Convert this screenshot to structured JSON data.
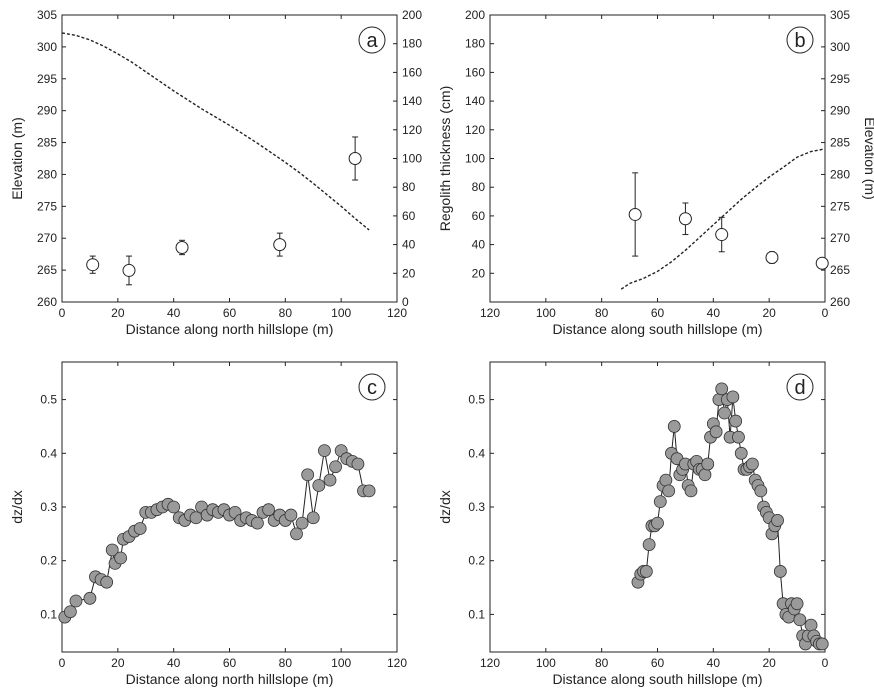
{
  "chart_data": [
    {
      "panel": "a",
      "type": "scatter",
      "panel_label": "a",
      "xlabel": "Distance along north hillslope (m)",
      "ylabel_left": "Elevation (m)",
      "ylabel_right": "",
      "xlim": [
        0,
        120
      ],
      "xticks": [
        0,
        20,
        40,
        60,
        80,
        100,
        120
      ],
      "xreversed": false,
      "ylim_left": [
        260,
        305
      ],
      "yticks_left": [
        260,
        265,
        270,
        275,
        280,
        285,
        290,
        295,
        300,
        305
      ],
      "ylim_right": [
        0,
        200
      ],
      "yticks_right": [
        0,
        20,
        40,
        60,
        80,
        100,
        120,
        140,
        160,
        180,
        200
      ],
      "series": [
        {
          "kind": "line-dashed",
          "axis": "left",
          "x": [
            0,
            5,
            10,
            15,
            20,
            25,
            30,
            35,
            40,
            45,
            50,
            55,
            60,
            65,
            70,
            75,
            80,
            85,
            90,
            95,
            100,
            105,
            110
          ],
          "y": [
            302.2,
            301.8,
            301.1,
            300.1,
            298.9,
            297.6,
            296.1,
            294.6,
            293.1,
            291.7,
            290.3,
            289.0,
            287.7,
            286.3,
            284.9,
            283.4,
            281.9,
            280.3,
            278.6,
            276.8,
            275.0,
            273.1,
            271.3
          ]
        },
        {
          "kind": "points-errorbars",
          "axis": "right",
          "x": [
            11,
            24,
            43,
            78,
            105
          ],
          "y": [
            26,
            22,
            38,
            40,
            100
          ],
          "err": [
            6,
            10,
            5,
            8,
            15
          ]
        }
      ]
    },
    {
      "panel": "b",
      "type": "scatter",
      "panel_label": "b",
      "xlabel": "Distance along south hillslope (m)",
      "ylabel_left": "Regolith thickness (cm)",
      "ylabel_right": "Elevation (m)",
      "xlim": [
        120,
        0
      ],
      "xticks": [
        120,
        100,
        80,
        60,
        40,
        20,
        0
      ],
      "xreversed": true,
      "ylim_left": [
        0,
        200
      ],
      "yticks_left": [
        20,
        40,
        60,
        80,
        100,
        120,
        140,
        160,
        180,
        200
      ],
      "ylim_right": [
        260,
        305
      ],
      "yticks_right": [
        260,
        265,
        270,
        275,
        280,
        285,
        290,
        295,
        300,
        305
      ],
      "series": [
        {
          "kind": "line-dashed",
          "axis": "right",
          "x": [
            73,
            70,
            65,
            60,
            55,
            50,
            45,
            40,
            35,
            30,
            25,
            20,
            15,
            10,
            5,
            0
          ],
          "y": [
            262.0,
            262.9,
            263.7,
            264.8,
            266.3,
            268.1,
            270.1,
            272.1,
            274.1,
            276.1,
            277.9,
            279.6,
            281.1,
            282.7,
            283.6,
            284.0
          ]
        },
        {
          "kind": "points-errorbars",
          "axis": "left",
          "x": [
            68,
            50,
            37,
            19,
            1
          ],
          "y": [
            61,
            58,
            47,
            31,
            27
          ],
          "err": [
            29,
            11,
            12,
            4,
            2
          ]
        }
      ]
    },
    {
      "panel": "c",
      "type": "scatter",
      "panel_label": "c",
      "xlabel": "Distance along north hillslope (m)",
      "ylabel_left": "dz/dx",
      "xlim": [
        0,
        120
      ],
      "xticks": [
        0,
        20,
        40,
        60,
        80,
        100,
        120
      ],
      "xreversed": false,
      "ylim_left": [
        0.03,
        0.57
      ],
      "yticks_left": [
        0.1,
        0.2,
        0.3,
        0.4,
        0.5
      ],
      "series": [
        {
          "kind": "points-line",
          "x": [
            1,
            3,
            5,
            10,
            12,
            14,
            16,
            18,
            19,
            21,
            22,
            24,
            26,
            28,
            30,
            32,
            34,
            36,
            38,
            40,
            42,
            44,
            46,
            48,
            50,
            52,
            54,
            56,
            58,
            60,
            62,
            64,
            66,
            68,
            70,
            72,
            74,
            76,
            78,
            80,
            82,
            84,
            86,
            88,
            90,
            92,
            94,
            96,
            98,
            100,
            102,
            104,
            106,
            108,
            110
          ],
          "y": [
            0.095,
            0.105,
            0.125,
            0.13,
            0.17,
            0.165,
            0.16,
            0.22,
            0.195,
            0.205,
            0.24,
            0.245,
            0.255,
            0.26,
            0.29,
            0.29,
            0.295,
            0.3,
            0.305,
            0.3,
            0.28,
            0.275,
            0.285,
            0.28,
            0.3,
            0.285,
            0.295,
            0.29,
            0.295,
            0.285,
            0.29,
            0.275,
            0.28,
            0.275,
            0.27,
            0.29,
            0.295,
            0.275,
            0.285,
            0.275,
            0.285,
            0.25,
            0.27,
            0.36,
            0.28,
            0.34,
            0.405,
            0.35,
            0.375,
            0.405,
            0.39,
            0.385,
            0.38,
            0.33,
            0.33
          ]
        }
      ]
    },
    {
      "panel": "d",
      "type": "scatter",
      "panel_label": "d",
      "xlabel": "Distance along south hillslope (m)",
      "ylabel_left": "dz/dx",
      "xlim": [
        120,
        0
      ],
      "xticks": [
        120,
        100,
        80,
        60,
        40,
        20,
        0
      ],
      "xreversed": true,
      "ylim_left": [
        0.03,
        0.57
      ],
      "yticks_left": [
        0.1,
        0.2,
        0.3,
        0.4,
        0.5
      ],
      "series": [
        {
          "kind": "points-line",
          "x": [
            67,
            66,
            65,
            64,
            63,
            62,
            61,
            60,
            59,
            58,
            57,
            56,
            55,
            54,
            53,
            52,
            51,
            50,
            49,
            48,
            47,
            46,
            45,
            44,
            43,
            42,
            41,
            40,
            39,
            38,
            37,
            36,
            35,
            34,
            33,
            32,
            31,
            30,
            29,
            28,
            27,
            26,
            25,
            24,
            23,
            22,
            21,
            20,
            19,
            18,
            17,
            16,
            15,
            14,
            13,
            12,
            11,
            10,
            9,
            8,
            7,
            6,
            5,
            4,
            3,
            2,
            1
          ],
          "y": [
            0.16,
            0.175,
            0.18,
            0.18,
            0.23,
            0.265,
            0.265,
            0.27,
            0.31,
            0.34,
            0.35,
            0.33,
            0.4,
            0.45,
            0.39,
            0.36,
            0.37,
            0.38,
            0.34,
            0.33,
            0.38,
            0.385,
            0.37,
            0.37,
            0.36,
            0.38,
            0.43,
            0.455,
            0.44,
            0.5,
            0.52,
            0.475,
            0.5,
            0.43,
            0.505,
            0.46,
            0.43,
            0.4,
            0.37,
            0.37,
            0.375,
            0.38,
            0.35,
            0.34,
            0.33,
            0.3,
            0.29,
            0.28,
            0.25,
            0.265,
            0.275,
            0.18,
            0.12,
            0.1,
            0.095,
            0.12,
            0.11,
            0.12,
            0.09,
            0.06,
            0.045,
            0.06,
            0.08,
            0.06,
            0.05,
            0.045,
            0.045
          ]
        }
      ]
    }
  ]
}
